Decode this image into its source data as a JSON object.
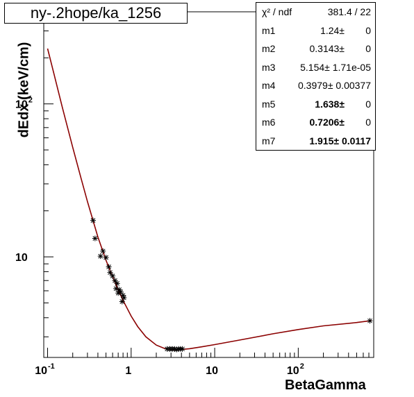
{
  "title": "ny-.2hope/ka_1256",
  "stats": {
    "chi_label": "χ² / ndf",
    "chi_value": "381.4 / 22",
    "params": [
      {
        "name": "m1",
        "value": "1.24±",
        "error": "0"
      },
      {
        "name": "m2",
        "value": "0.3143±",
        "error": "0"
      },
      {
        "name": "m3",
        "value": "5.154± 1.71e-05",
        "error": ""
      },
      {
        "name": "m4",
        "value": "0.3979± 0.00377",
        "error": ""
      },
      {
        "name": "m5",
        "value": "1.638±",
        "error": "0"
      },
      {
        "name": "m6",
        "value": "0.7206±",
        "error": "0"
      },
      {
        "name": "m7",
        "value": "1.915± 0.0117",
        "error": ""
      }
    ]
  },
  "chart_data": {
    "type": "scatter",
    "title": "ny-.2hope/ka_1256",
    "xlabel": "BetaGamma",
    "ylabel": "dEdx (keV/cm)",
    "xscale": "log",
    "yscale": "log",
    "xlim": [
      0.09,
      800
    ],
    "ylim": [
      2.2,
      400
    ],
    "xticklabels": [
      {
        "value": 0.1,
        "label": "10",
        "exp": "-1"
      },
      {
        "value": 1,
        "label": "1",
        "exp": ""
      },
      {
        "value": 10,
        "label": "10",
        "exp": ""
      },
      {
        "value": 100,
        "label": "10",
        "exp": "2"
      }
    ],
    "yticklabels": [
      {
        "value": 10,
        "label": "10",
        "exp": ""
      },
      {
        "value": 100,
        "label": "10",
        "exp": "2"
      }
    ],
    "grid": false,
    "series": [
      {
        "kind": "points",
        "marker": "*",
        "color": "#000000",
        "x": [
          0.35,
          0.37,
          0.43,
          0.46,
          0.5,
          0.54,
          0.56,
          0.6,
          0.64,
          0.66,
          0.68,
          0.7,
          0.72,
          0.75,
          0.78,
          0.82,
          0.8,
          2.7,
          2.9,
          3.1,
          3.3,
          3.5,
          3.7,
          3.9,
          4.1,
          720
        ],
        "y": [
          17.3,
          13.2,
          10.1,
          10.9,
          9.9,
          8.6,
          7.9,
          7.5,
          7.0,
          6.2,
          6.7,
          5.8,
          6.1,
          5.9,
          5.1,
          5.4,
          5.6,
          2.5,
          2.5,
          2.5,
          2.5,
          2.48,
          2.5,
          2.5,
          2.5,
          3.82
        ]
      },
      {
        "kind": "curve",
        "color": "#8b0000",
        "x": [
          0.1,
          0.12,
          0.15,
          0.2,
          0.25,
          0.3,
          0.4,
          0.5,
          0.6,
          0.7,
          0.8,
          1.0,
          1.2,
          1.5,
          2.0,
          2.5,
          3.0,
          3.5,
          4.0,
          5.0,
          7.0,
          10,
          20,
          50,
          100,
          200,
          500,
          750
        ],
        "y": [
          230,
          155,
          95,
          52,
          33,
          23,
          13.5,
          9.5,
          7.4,
          6.1,
          5.2,
          4.1,
          3.5,
          3.0,
          2.65,
          2.52,
          2.48,
          2.47,
          2.48,
          2.51,
          2.58,
          2.67,
          2.86,
          3.14,
          3.35,
          3.54,
          3.72,
          3.83
        ]
      }
    ]
  }
}
